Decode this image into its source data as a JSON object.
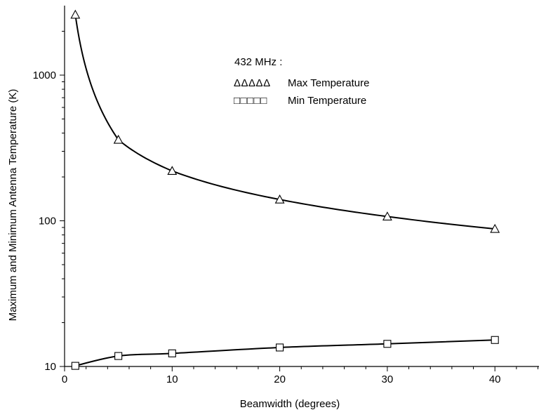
{
  "chart_data": {
    "type": "line",
    "xlabel": "Beamwidth (degrees)",
    "ylabel": "Maximum and Minimum Antenna Temperature (K)",
    "xlim": [
      0,
      45
    ],
    "ylim": [
      10,
      3000
    ],
    "yscale": "log",
    "grid": false,
    "legend_title": "432 MHz :",
    "legend_position": "top-center",
    "x_ticks": [
      "0",
      "10",
      "20",
      "30",
      "40"
    ],
    "y_ticks": [
      "10",
      "100",
      "1000"
    ],
    "series": [
      {
        "name": "Max Temperature",
        "marker": "triangle",
        "x": [
          1,
          5,
          10,
          20,
          30,
          40
        ],
        "y": [
          2600,
          360,
          220,
          140,
          107,
          88
        ],
        "legend_symbols": "ΔΔΔΔΔ"
      },
      {
        "name": "Min Temperature",
        "marker": "square",
        "x": [
          1,
          5,
          10,
          20,
          30,
          40
        ],
        "y": [
          10.1,
          11.8,
          12.3,
          13.5,
          14.3,
          15.2
        ],
        "legend_symbols": "□□□□□"
      }
    ]
  }
}
